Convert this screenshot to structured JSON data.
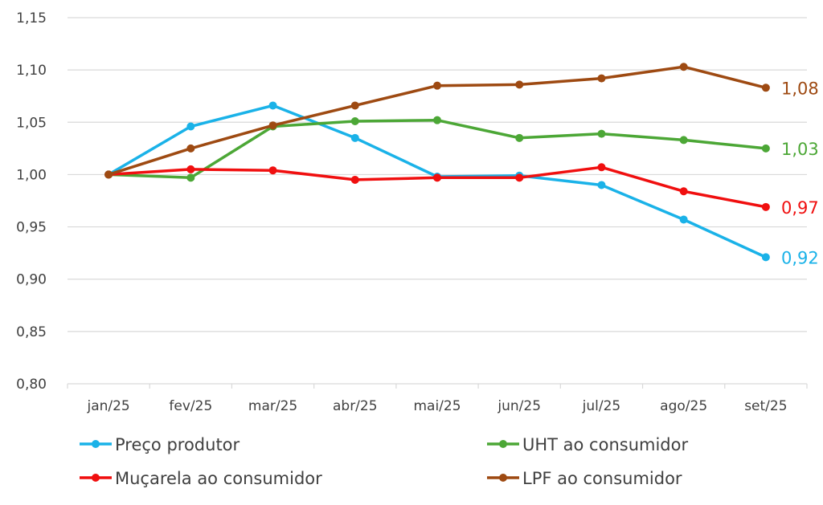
{
  "chart_data": {
    "type": "line",
    "categories": [
      "jan/25",
      "fev/25",
      "mar/25",
      "abr/25",
      "mai/25",
      "jun/25",
      "jul/25",
      "ago/25",
      "set/25"
    ],
    "ylim": [
      0.8,
      1.15
    ],
    "yticks": [
      "0,80",
      "0,85",
      "0,90",
      "0,95",
      "1,00",
      "1,05",
      "1,10",
      "1,15"
    ],
    "ytick_values": [
      0.8,
      0.85,
      0.9,
      0.95,
      1.0,
      1.05,
      1.1,
      1.15
    ],
    "grid": true,
    "legend_position": "bottom",
    "series": [
      {
        "name": "Preço produtor",
        "color": "#1ab2e8",
        "values": [
          1.0,
          1.046,
          1.066,
          1.035,
          0.998,
          0.999,
          0.99,
          0.957,
          0.921
        ],
        "end_label": "0,92"
      },
      {
        "name": "UHT ao consumidor",
        "color": "#4ca736",
        "values": [
          1.0,
          0.997,
          1.046,
          1.051,
          1.052,
          1.035,
          1.039,
          1.033,
          1.025
        ],
        "end_label": "1,03"
      },
      {
        "name": "Muçarela ao consumidor",
        "color": "#f00f0f",
        "values": [
          1.0,
          1.005,
          1.004,
          0.995,
          0.997,
          0.997,
          1.007,
          0.984,
          0.969
        ],
        "end_label": "0,97"
      },
      {
        "name": "LPF ao consumidor",
        "color": "#9e4a12",
        "values": [
          1.0,
          1.025,
          1.047,
          1.066,
          1.085,
          1.086,
          1.092,
          1.103,
          1.083
        ],
        "end_label": "1,08"
      }
    ]
  }
}
